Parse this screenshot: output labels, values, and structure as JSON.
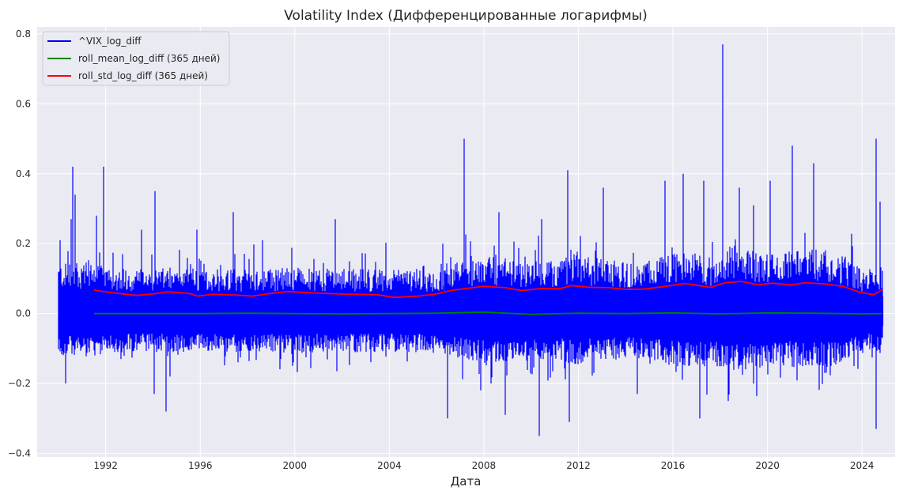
{
  "chart_data": {
    "type": "line",
    "title": "Volatility Index (Дифференцированные логарифмы)",
    "xlabel": "Дата",
    "ylabel": "",
    "xlim": [
      1989.1,
      2025.4
    ],
    "ylim": [
      -0.41,
      0.82
    ],
    "grid": true,
    "legend_position": "top-left",
    "x_ticks": [
      1992,
      1996,
      2000,
      2004,
      2008,
      2012,
      2016,
      2020,
      2024
    ],
    "x_tick_labels": [
      "1992",
      "1996",
      "2000",
      "2004",
      "2008",
      "2012",
      "2016",
      "2020",
      "2024"
    ],
    "y_ticks": [
      -0.4,
      -0.2,
      0.0,
      0.2,
      0.4,
      0.6,
      0.8
    ],
    "y_tick_labels": [
      "−0.4",
      "−0.2",
      "0.0",
      "0.2",
      "0.4",
      "0.6",
      "0.8"
    ],
    "colors": {
      "background": "#eaeaf2",
      "grid": "#ffffff"
    },
    "series": [
      {
        "name": "^VIX_log_diff",
        "color": "#0000ff",
        "x_range": [
          1990.0,
          2024.85
        ],
        "spikes": [
          [
            1990.08,
            0.21
          ],
          [
            1990.3,
            -0.2
          ],
          [
            1990.55,
            0.27
          ],
          [
            1990.62,
            0.42
          ],
          [
            1990.7,
            0.34
          ],
          [
            1991.6,
            0.28
          ],
          [
            1991.9,
            0.42
          ],
          [
            1993.5,
            0.24
          ],
          [
            1994.05,
            -0.23
          ],
          [
            1994.1,
            0.35
          ],
          [
            1994.55,
            -0.28
          ],
          [
            1995.85,
            0.24
          ],
          [
            1997.4,
            0.29
          ],
          [
            1998.65,
            0.21
          ],
          [
            2001.7,
            0.27
          ],
          [
            2006.45,
            -0.3
          ],
          [
            2007.15,
            0.5
          ],
          [
            2008.65,
            0.29
          ],
          [
            2008.9,
            -0.29
          ],
          [
            2010.35,
            -0.35
          ],
          [
            2010.45,
            0.27
          ],
          [
            2011.55,
            0.41
          ],
          [
            2011.6,
            -0.31
          ],
          [
            2013.05,
            0.36
          ],
          [
            2014.5,
            -0.23
          ],
          [
            2015.65,
            0.38
          ],
          [
            2016.45,
            0.4
          ],
          [
            2017.15,
            -0.3
          ],
          [
            2017.3,
            0.38
          ],
          [
            2018.1,
            0.77
          ],
          [
            2018.35,
            -0.25
          ],
          [
            2018.8,
            0.36
          ],
          [
            2019.4,
            0.31
          ],
          [
            2020.1,
            0.38
          ],
          [
            2021.05,
            0.48
          ],
          [
            2021.95,
            0.43
          ],
          [
            2024.6,
            0.5
          ],
          [
            2024.6,
            -0.33
          ],
          [
            2024.75,
            0.32
          ]
        ]
      },
      {
        "name": "roll_mean_log_diff (365 дней)",
        "color": "#008000",
        "x": [
          1991.5,
          1994,
          1996,
          1998,
          2000,
          2002,
          2004,
          2006,
          2008,
          2010,
          2012,
          2014,
          2016,
          2018,
          2020,
          2022,
          2024,
          2024.85
        ],
        "values": [
          0.0,
          0.0,
          0.0,
          0.001,
          0.0,
          -0.001,
          0.0,
          0.001,
          0.004,
          -0.002,
          0.001,
          0.0,
          0.002,
          -0.001,
          0.002,
          0.001,
          -0.001,
          0.0
        ]
      },
      {
        "name": "roll_std_log_diff (365 дней)",
        "color": "#ff0000",
        "x": [
          1991.5,
          1992.2,
          1993.3,
          1994.0,
          1994.6,
          1995.5,
          1995.9,
          1996.5,
          1997.5,
          1998.2,
          1998.9,
          1999.7,
          2000.5,
          2001.5,
          2002.5,
          2003.5,
          2004.2,
          2005.2,
          2006.0,
          2006.6,
          2007.3,
          2008.0,
          2008.9,
          2009.6,
          2010.5,
          2011.2,
          2011.7,
          2012.5,
          2013.3,
          2014.0,
          2014.8,
          2015.7,
          2016.5,
          2017.0,
          2017.6,
          2018.2,
          2018.9,
          2019.6,
          2020.2,
          2021.0,
          2021.6,
          2022.4,
          2023.2,
          2023.9,
          2024.5,
          2024.85
        ],
        "values": [
          0.067,
          0.06,
          0.052,
          0.056,
          0.062,
          0.058,
          0.05,
          0.055,
          0.053,
          0.05,
          0.057,
          0.063,
          0.06,
          0.057,
          0.055,
          0.054,
          0.046,
          0.05,
          0.056,
          0.066,
          0.072,
          0.078,
          0.074,
          0.066,
          0.072,
          0.071,
          0.08,
          0.075,
          0.074,
          0.069,
          0.07,
          0.078,
          0.086,
          0.081,
          0.075,
          0.088,
          0.092,
          0.082,
          0.087,
          0.082,
          0.088,
          0.085,
          0.078,
          0.061,
          0.054,
          0.068
        ]
      }
    ]
  }
}
